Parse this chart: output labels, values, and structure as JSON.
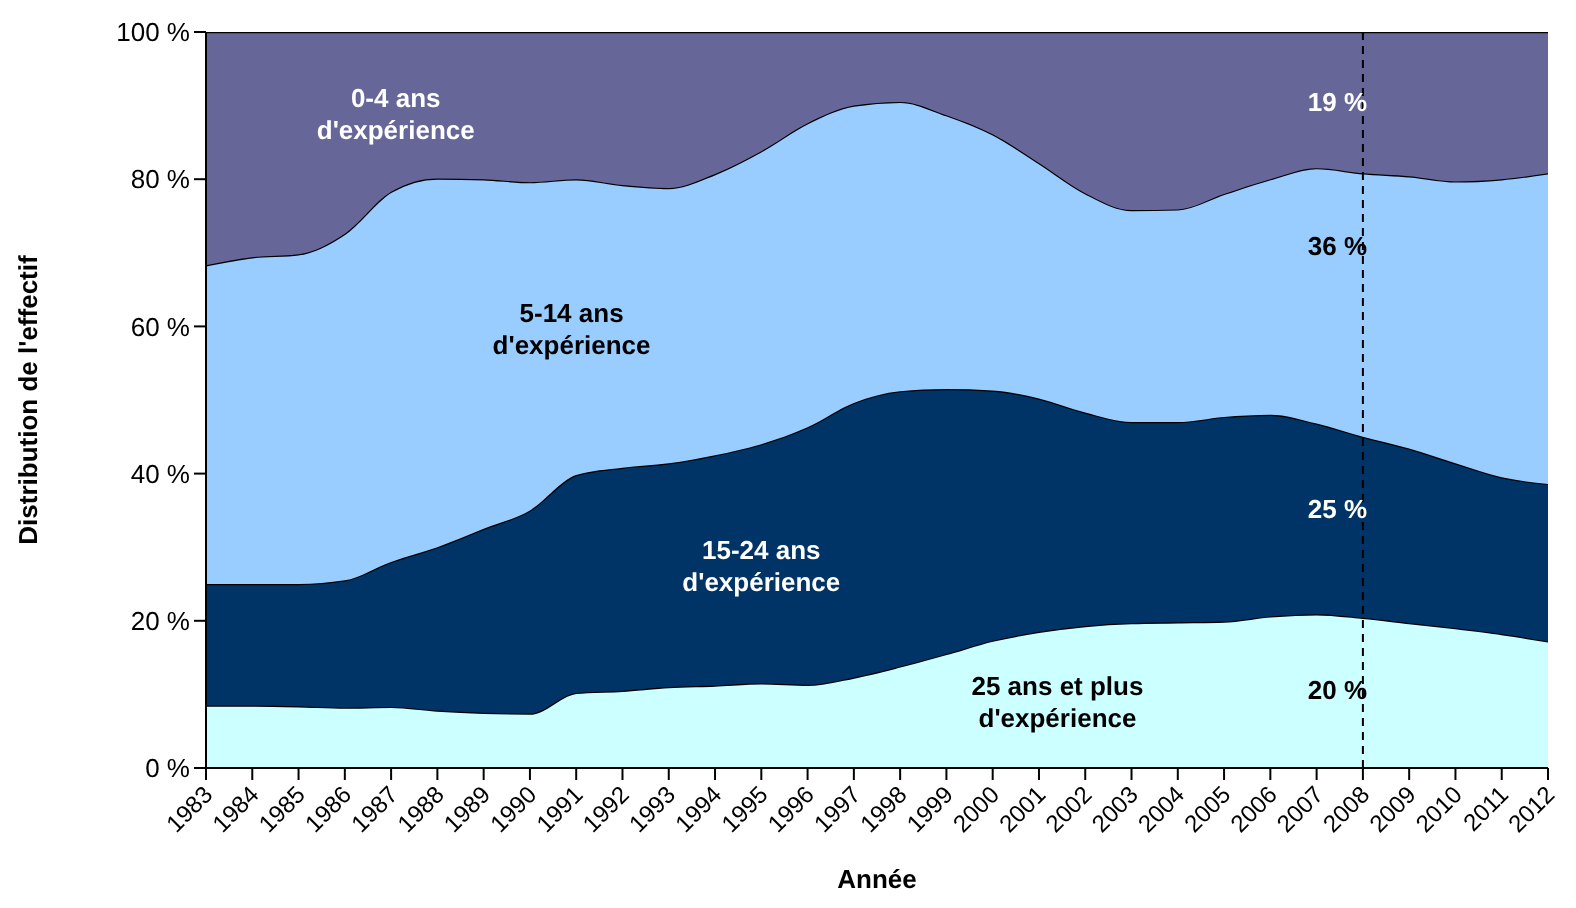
{
  "chart_data": {
    "type": "area",
    "stacked": true,
    "xlabel": "Année",
    "ylabel": "Distribution de l'effectif",
    "categories": [
      "1983",
      "1984",
      "1985",
      "1986",
      "1987",
      "1988",
      "1989",
      "1990",
      "1991",
      "1992",
      "1993",
      "1994",
      "1995",
      "1996",
      "1997",
      "1998",
      "1999",
      "2000",
      "2001",
      "2002",
      "2003",
      "2004",
      "2005",
      "2006",
      "2007",
      "2008",
      "2009",
      "2010",
      "2011",
      "2012"
    ],
    "series": [
      {
        "name": "25 ans et plus d'expérience",
        "color": "#ccffff",
        "values": [
          8.5,
          8.5,
          8.4,
          8.2,
          8.3,
          7.8,
          7.5,
          7.4,
          10.2,
          10.5,
          11,
          11.2,
          11.5,
          11.3,
          12.3,
          13.8,
          15.5,
          17.3,
          18.5,
          19.3,
          19.7,
          19.8,
          19.9,
          20.6,
          20.9,
          20.4,
          19.7,
          19,
          18.2,
          17.2
        ],
        "value_labels": [
          null,
          null,
          null,
          null,
          null,
          null,
          null,
          null,
          null,
          null,
          null,
          null,
          null,
          null,
          null,
          null,
          null,
          null,
          null,
          null,
          null,
          null,
          null,
          null,
          null,
          "20 %",
          null,
          null,
          null,
          null
        ]
      },
      {
        "name": "15-24 ans d'expérience",
        "color": "#003366",
        "values": [
          16.5,
          16.5,
          16.6,
          17.3,
          19.7,
          22.2,
          25,
          27.6,
          29.6,
          30.3,
          30.4,
          31.3,
          32.5,
          35,
          37.3,
          37.4,
          36,
          34,
          31.7,
          29,
          27.3,
          27.2,
          27.8,
          27.4,
          25.9,
          24.6,
          23.7,
          22.4,
          21.3,
          21.4
        ],
        "value_labels": [
          null,
          null,
          null,
          null,
          null,
          null,
          null,
          null,
          null,
          null,
          null,
          null,
          null,
          null,
          null,
          null,
          null,
          null,
          null,
          null,
          null,
          null,
          null,
          null,
          null,
          "25 %",
          null,
          null,
          null,
          null
        ]
      },
      {
        "name": "5-14 ans d'expérience",
        "color": "#99ccff",
        "values": [
          43.3,
          44.4,
          44.8,
          47.1,
          50.3,
          50.1,
          47.5,
          44.6,
          40.2,
          38.4,
          37.4,
          38.2,
          39.8,
          41.3,
          40.4,
          39.3,
          37.2,
          34.8,
          32,
          29.8,
          28.8,
          28.9,
          30.3,
          32,
          34.7,
          35.8,
          37,
          38.3,
          40.5,
          42.2
        ],
        "value_labels": [
          null,
          null,
          null,
          null,
          null,
          null,
          null,
          null,
          null,
          null,
          null,
          null,
          null,
          null,
          null,
          null,
          null,
          null,
          null,
          null,
          null,
          null,
          null,
          null,
          null,
          "36 %",
          null,
          null,
          null,
          null
        ]
      },
      {
        "name": "0-4 ans d'expérience",
        "color": "#666699",
        "values": [
          31.7,
          30.6,
          30.2,
          27.4,
          21.7,
          19.9,
          20,
          20.4,
          20,
          20.8,
          21.2,
          19.3,
          16.2,
          12.4,
          10,
          9.5,
          11.3,
          13.9,
          17.8,
          21.9,
          24.2,
          24.1,
          22,
          20,
          18.5,
          19.2,
          19.6,
          20.3,
          20,
          19.2
        ],
        "value_labels": [
          null,
          null,
          null,
          null,
          null,
          null,
          null,
          null,
          null,
          null,
          null,
          null,
          null,
          null,
          null,
          null,
          null,
          null,
          null,
          null,
          null,
          null,
          null,
          null,
          null,
          "19 %",
          null,
          null,
          null,
          null
        ]
      }
    ],
    "ylim": [
      0,
      100
    ],
    "yticks": [
      {
        "value": 0,
        "label": "0 %"
      },
      {
        "value": 20,
        "label": "20 %"
      },
      {
        "value": 40,
        "label": "40 %"
      },
      {
        "value": 60,
        "label": "60 %"
      },
      {
        "value": 80,
        "label": "80 %"
      },
      {
        "value": 100,
        "label": "100 %"
      }
    ],
    "ref_lines": [
      {
        "axis": "x",
        "value": "2008",
        "line_style": "dashed",
        "color": "#000000"
      }
    ],
    "legend": false
  }
}
